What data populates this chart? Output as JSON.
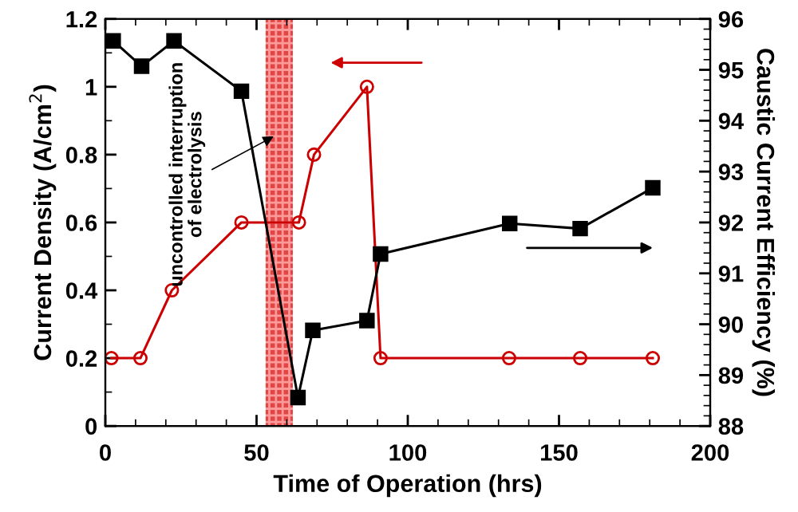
{
  "chart_data": {
    "type": "line",
    "xlabel": "Time of Operation (hrs)",
    "ylabel": "Current Density (A/cm$^{2}$)",
    "y2label": "Caustic Current Efficiency (%)",
    "xlim": [
      0,
      200
    ],
    "xticks": [
      0,
      50,
      100,
      150,
      200
    ],
    "ylim": [
      0,
      1.2
    ],
    "yticks": [
      0,
      0.2,
      0.4,
      0.6,
      0.8,
      1,
      1.2
    ],
    "y2lim": [
      88,
      96
    ],
    "y2ticks": [
      88,
      89,
      90,
      91,
      92,
      93,
      94,
      95,
      96
    ],
    "grid": false,
    "legend": false,
    "line_style": "solid",
    "series": [
      {
        "color": "#cc0000",
        "marker": "circle",
        "x": [
          2,
          11.6,
          22,
          45,
          64,
          69,
          86.5,
          91,
          133.5,
          157,
          181
        ],
        "values": [
          0.2,
          0.2,
          0.4,
          0.6,
          0.6,
          0.8,
          1.0,
          0.2,
          0.2,
          0.2,
          0.2
        ]
      },
      {
        "color": "#000000",
        "marker": "square",
        "axis": "y2",
        "x": [
          2.6,
          12,
          22.7,
          45,
          63.7,
          68.6,
          86.5,
          91,
          133.7,
          157,
          181
        ],
        "values": [
          95.57,
          95.07,
          95.57,
          94.58,
          88.56,
          89.88,
          90.07,
          91.38,
          91.98,
          91.88,
          92.68
        ]
      }
    ],
    "bands": [
      {
        "axis": "x",
        "from": 53,
        "to": 62,
        "color": "#e03030"
      }
    ],
    "annotations": [
      "uncontrolled interruption\nof electrolysis"
    ]
  }
}
